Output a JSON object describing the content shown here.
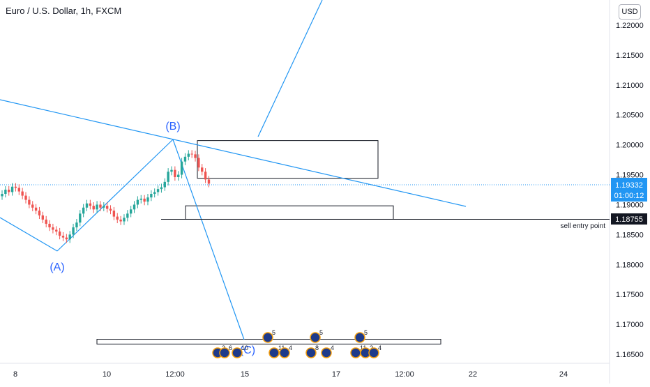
{
  "header": {
    "symbol_title": "Euro / U.S. Dollar, 1h, FXCM",
    "currency_button": "USD"
  },
  "price_tags": {
    "current_price": "1.19332",
    "countdown": "01:00:12",
    "entry_price": "1.18755",
    "entry_label": "sell entry point"
  },
  "wave_labels": {
    "a": "(A)",
    "b": "(B)",
    "c": "(C)"
  },
  "event_badges": [
    "5",
    "5",
    "5",
    "2",
    "6",
    "10",
    "11",
    "4",
    "8",
    "4",
    "11",
    "2",
    "4"
  ],
  "colors": {
    "bull": "#26a69a",
    "bear": "#ef5350",
    "drawing": "#2196f3",
    "wave_label": "#2962ff",
    "price_tag": "#2196f3",
    "entry_tag": "#131722"
  },
  "chart_data": {
    "type": "candlestick",
    "title": "Euro / U.S. Dollar, 1h, FXCM",
    "y_ticks": [
      "1.22000",
      "1.21500",
      "1.21000",
      "1.20500",
      "1.20000",
      "1.19500",
      "1.19000",
      "1.18500",
      "1.18000",
      "1.17500",
      "1.17000",
      "1.16500"
    ],
    "x_ticks": [
      "8",
      "10",
      "12:00",
      "15",
      "17",
      "12:00",
      "22",
      "24"
    ],
    "ylim": [
      1.1635,
      1.2225
    ],
    "series": [
      {
        "name": "EURUSD",
        "close": [
          1.1918,
          1.1925,
          1.1921,
          1.193,
          1.1928,
          1.1922,
          1.1915,
          1.1908,
          1.19,
          1.1895,
          1.189,
          1.1882,
          1.1875,
          1.1868,
          1.1862,
          1.1858,
          1.1855,
          1.1848,
          1.1845,
          1.1842,
          1.185,
          1.1862,
          1.187,
          1.1885,
          1.1895,
          1.1902,
          1.1898,
          1.1892,
          1.19,
          1.1895,
          1.1898,
          1.1893,
          1.189,
          1.188,
          1.1875,
          1.1872,
          1.1878,
          1.1885,
          1.1892,
          1.19,
          1.1908,
          1.191,
          1.1905,
          1.1912,
          1.1918,
          1.1921,
          1.1926,
          1.1929,
          1.1938,
          1.1955,
          1.1958,
          1.1946,
          1.195,
          1.1972,
          1.198,
          1.1985,
          1.1984,
          1.1978,
          1.1962,
          1.1955,
          1.1942,
          1.1935
        ]
      }
    ],
    "annotations": {
      "current_price": 1.19332,
      "sell_entry_point": 1.18755,
      "pivot_a": 1.1842,
      "pivot_b": 1.2005,
      "zones": [
        {
          "from": 1.1944,
          "to": 1.2007
        },
        {
          "from": 1.18755,
          "to": 1.1898
        },
        {
          "from": 1.1667,
          "to": 1.1675
        }
      ]
    }
  }
}
